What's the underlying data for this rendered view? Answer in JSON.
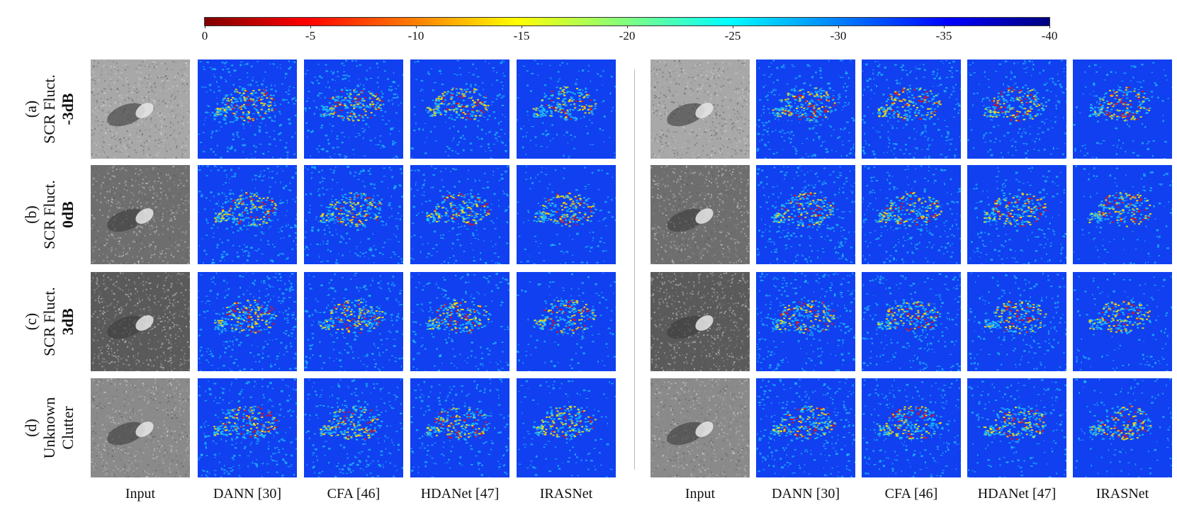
{
  "colorbar": {
    "ticks": [
      "0",
      "-5",
      "-10",
      "-15",
      "-20",
      "-25",
      "-30",
      "-35",
      "-40"
    ]
  },
  "rows": [
    {
      "letter": "(a)",
      "line1": "SCR Fluct.",
      "line2": "-3dB"
    },
    {
      "letter": "(b)",
      "line1": "SCR Fluct.",
      "line2": "0dB"
    },
    {
      "letter": "(c)",
      "line1": "SCR Fluct.",
      "line2": "3dB"
    },
    {
      "letter": "(d)",
      "line1": "Unknown",
      "line2": "Clutter"
    }
  ],
  "left_columns": [
    "Input",
    "DANN [30]",
    "CFA [46]",
    "HDANet [47]",
    "IRASNet"
  ],
  "right_columns": [
    "Input",
    "DANN [30]",
    "CFA [46]",
    "HDANet [47]",
    "IRASNet"
  ],
  "colors": {
    "heat_background": "#1040f0",
    "heat_mid": "#20c0ff",
    "heat_warm": "#ffe000",
    "heat_hot": "#e81010"
  }
}
